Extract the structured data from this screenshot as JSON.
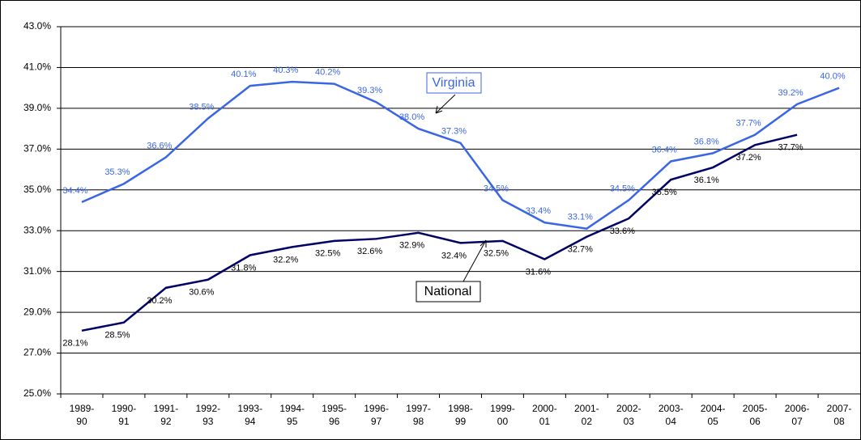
{
  "chart_data": {
    "type": "line",
    "categories": [
      "1989-90",
      "1990-91",
      "1991-92",
      "1992-93",
      "1993-94",
      "1994-95",
      "1995-96",
      "1996-97",
      "1997-98",
      "1998-99",
      "1999-00",
      "2000-01",
      "2001-02",
      "2002-03",
      "2003-04",
      "2004-05",
      "2005-06",
      "2006-07",
      "2007-08"
    ],
    "series": [
      {
        "name": "Virginia",
        "color": "#3a66e6",
        "values": [
          34.4,
          35.3,
          36.6,
          38.5,
          40.1,
          40.3,
          40.2,
          39.3,
          38.0,
          37.3,
          34.5,
          33.4,
          33.1,
          34.5,
          36.4,
          36.8,
          37.7,
          39.2,
          40.0
        ],
        "value_labels": [
          "34.4%",
          "35.3%",
          "36.6%",
          "38.5%",
          "40.1%",
          "40.3%",
          "40.2%",
          "39.3%",
          "38.0%",
          "37.3%",
          "34.5%",
          "33.4%",
          "33.1%",
          "34.5%",
          "36.4%",
          "36.8%",
          "37.7%",
          "39.2%",
          "40.0%"
        ]
      },
      {
        "name": "National",
        "color": "#000066",
        "values": [
          28.1,
          28.5,
          30.2,
          30.6,
          31.8,
          32.2,
          32.5,
          32.6,
          32.9,
          32.4,
          32.5,
          31.6,
          32.7,
          33.6,
          35.5,
          36.1,
          37.2,
          37.7,
          null
        ],
        "value_labels": [
          "28.1%",
          "28.5%",
          "30.2%",
          "30.6%",
          "31.8%",
          "32.2%",
          "32.5%",
          "32.6%",
          "32.9%",
          "32.4%",
          "32.5%",
          "31.6%",
          "32.7%",
          "33.6%",
          "35.5%",
          "36.1%",
          "37.2%",
          "37.7%",
          null
        ]
      }
    ],
    "ylim": [
      25,
      43
    ],
    "yticks": [
      {
        "value": 25,
        "label": "25.0%"
      },
      {
        "value": 27,
        "label": "27.0%"
      },
      {
        "value": 29,
        "label": "29.0%"
      },
      {
        "value": 31,
        "label": "31.0%"
      },
      {
        "value": 33,
        "label": "33.0%"
      },
      {
        "value": 35,
        "label": "35.0%"
      },
      {
        "value": 37,
        "label": "37.0%"
      },
      {
        "value": 39,
        "label": "39.0%"
      },
      {
        "value": 41,
        "label": "41.0%"
      },
      {
        "value": 43,
        "label": "43.0%"
      }
    ],
    "grid": true
  }
}
